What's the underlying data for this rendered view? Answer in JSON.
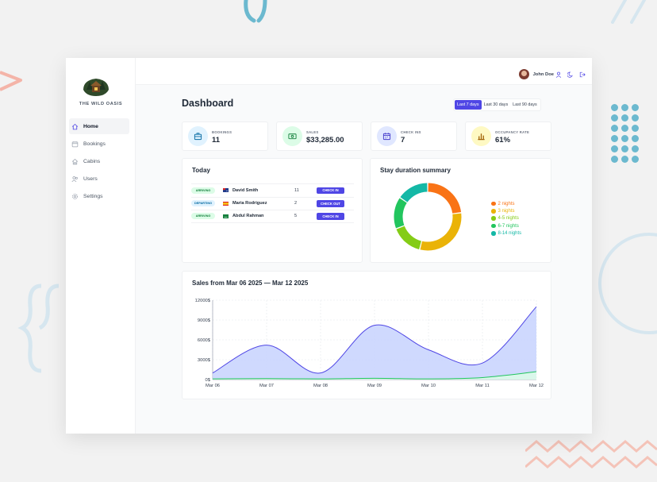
{
  "brand": {
    "name": "THE WILD OASIS"
  },
  "sidebar": {
    "items": [
      {
        "label": "Home",
        "icon": "home-icon",
        "active": true
      },
      {
        "label": "Bookings",
        "icon": "calendar-icon",
        "active": false
      },
      {
        "label": "Cabins",
        "icon": "house-icon",
        "active": false
      },
      {
        "label": "Users",
        "icon": "users-icon",
        "active": false
      },
      {
        "label": "Settings",
        "icon": "gear-icon",
        "active": false
      }
    ]
  },
  "header": {
    "user_name": "John Doe",
    "icons": [
      "user-icon",
      "moon-icon",
      "logout-icon"
    ]
  },
  "page": {
    "title": "Dashboard",
    "filters": [
      {
        "label": "Last 7 days",
        "active": true
      },
      {
        "label": "Last 30 days",
        "active": false
      },
      {
        "label": "Last 90 days",
        "active": false
      }
    ]
  },
  "stats": [
    {
      "label": "BOOKINGS",
      "value": "11",
      "icon": "briefcase-icon",
      "color": "#0369a1",
      "bg": "#e0f2fe"
    },
    {
      "label": "SALES",
      "value": "$33,285.00",
      "icon": "banknotes-icon",
      "color": "#15803d",
      "bg": "#dcfce7"
    },
    {
      "label": "CHECK INS",
      "value": "7",
      "icon": "calendar-days-icon",
      "color": "#4338ca",
      "bg": "#e0e7ff"
    },
    {
      "label": "OCCUPANCY RATE",
      "value": "61%",
      "icon": "chart-bar-icon",
      "color": "#a16207",
      "bg": "#fef9c3"
    }
  ],
  "today": {
    "title": "Today",
    "rows": [
      {
        "status": "ARRIVING",
        "guest": "David Smith",
        "nights": "11",
        "action": "CHECK IN",
        "flag": "australia-flag"
      },
      {
        "status": "DEPARTING",
        "guest": "Maria Rodriguez",
        "nights": "2",
        "action": "CHECK OUT",
        "flag": "spain-flag"
      },
      {
        "status": "ARRIVING",
        "guest": "Abdul Rahman",
        "nights": "5",
        "action": "CHECK IN",
        "flag": "saudi-flag"
      }
    ]
  },
  "duration": {
    "title": "Stay duration summary",
    "chart_data": {
      "type": "pie",
      "donut": true,
      "categories": [
        "2 nights",
        "3 nights",
        "4-5 nights",
        "6-7 nights",
        "8-14 nights"
      ],
      "values": [
        3,
        4,
        2,
        2,
        2
      ],
      "colors": [
        "#f97316",
        "#eab308",
        "#84cc16",
        "#22c55e",
        "#14b8a6"
      ],
      "legend": "right"
    }
  },
  "sales": {
    "title": "Sales from Mar 06 2025 — Mar 12 2025",
    "chart_data": {
      "type": "area",
      "categories": [
        "Mar 06",
        "Mar 07",
        "Mar 08",
        "Mar 09",
        "Mar 10",
        "Mar 11",
        "Mar 12"
      ],
      "series": [
        {
          "values": [
            1000,
            5200,
            1000,
            8200,
            4500,
            2500,
            11000
          ],
          "color": "#4f46e5",
          "fill": "#c7d2fe"
        },
        {
          "values": [
            100,
            150,
            100,
            200,
            100,
            300,
            1200
          ],
          "color": "#22c55e",
          "fill": "#dcfce7"
        }
      ],
      "y_ticks": [
        "0$",
        "3000$",
        "6000$",
        "9000$",
        "12000$"
      ],
      "ylim": [
        0,
        12000
      ],
      "grid": true
    }
  }
}
